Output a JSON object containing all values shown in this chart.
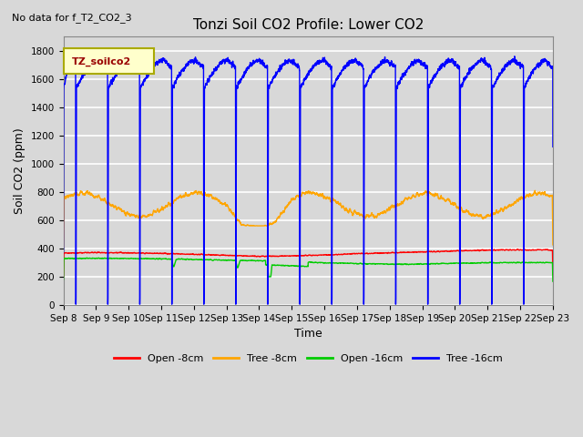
{
  "title": "Tonzi Soil CO2 Profile: Lower CO2",
  "subtitle": "No data for f_T2_CO2_3",
  "ylabel": "Soil CO2 (ppm)",
  "xlabel": "Time",
  "legend_label": "TZ_soilco2",
  "ylim": [
    0,
    1900
  ],
  "yticks": [
    0,
    200,
    400,
    600,
    800,
    1000,
    1200,
    1400,
    1600,
    1800
  ],
  "series": {
    "open_8cm": {
      "color": "#ff0000",
      "label": "Open -8cm"
    },
    "tree_8cm": {
      "color": "#ffa500",
      "label": "Tree -8cm"
    },
    "open_16cm": {
      "color": "#00cc00",
      "label": "Open -16cm"
    },
    "tree_16cm": {
      "color": "#0000ff",
      "label": "Tree -16cm"
    }
  },
  "xtick_labels": [
    "Sep 8",
    "Sep 9",
    "Sep 10",
    "Sep 11",
    "Sep 12",
    "Sep 13",
    "Sep 14",
    "Sep 15",
    "Sep 16",
    "Sep 17",
    "Sep 18",
    "Sep 19",
    "Sep 20",
    "Sep 21",
    "Sep 22",
    "Sep 23"
  ],
  "background_color": "#d8d8d8",
  "grid_color": "#ffffff",
  "figsize": [
    6.4,
    4.8
  ],
  "dpi": 100
}
